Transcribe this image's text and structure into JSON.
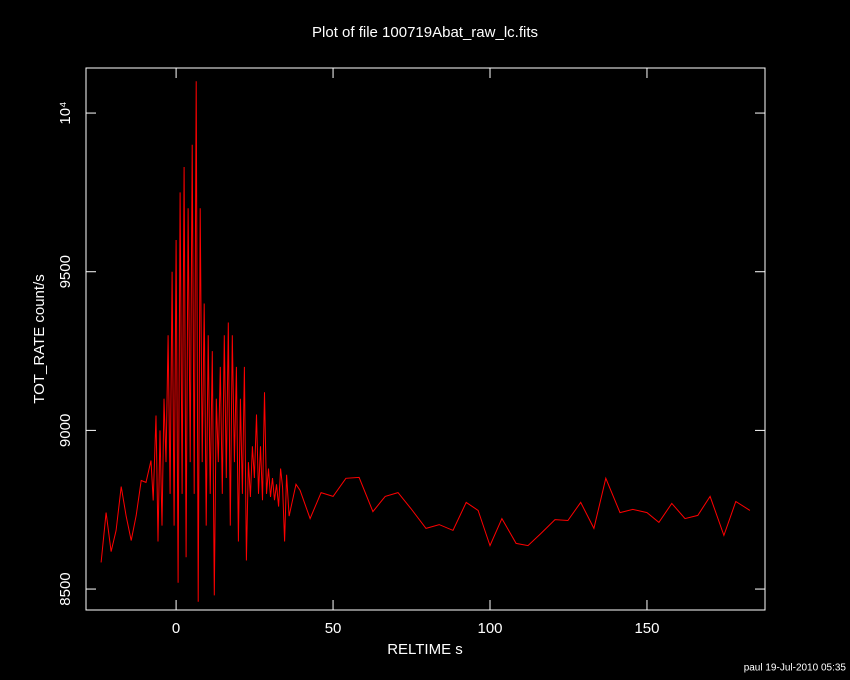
{
  "chart_data": {
    "type": "line",
    "title": "Plot of file 100719Abat_raw_lc.fits",
    "xlabel": "RELTIME  s",
    "ylabel": "TOT_RATE  count/s",
    "footer": "paul 19-Jul-2010 05:35",
    "color": "#ff0000",
    "x": [
      -23.9,
      -22.3,
      -20.7,
      -19.1,
      -17.5,
      -15.9,
      -14.3,
      -12.7,
      -11.1,
      -9.6,
      -8.0,
      -7.3,
      -6.4,
      -5.76,
      -5.12,
      -4.48,
      -3.84,
      -3.2,
      -2.56,
      -1.92,
      -1.28,
      -0.64,
      0,
      0.64,
      1.28,
      1.92,
      2.56,
      3.2,
      3.84,
      4.48,
      5.12,
      5.76,
      6.4,
      7.04,
      7.68,
      8.32,
      8.96,
      9.6,
      10.24,
      10.88,
      11.52,
      12.16,
      12.8,
      13.44,
      14.08,
      14.72,
      15.36,
      16.0,
      16.64,
      17.28,
      17.92,
      18.56,
      19.2,
      19.84,
      20.48,
      21.12,
      21.76,
      22.4,
      23.04,
      23.68,
      24.32,
      24.96,
      25.6,
      26.24,
      26.88,
      27.52,
      28.16,
      28.8,
      29.44,
      30.08,
      30.72,
      31.36,
      32.0,
      32.64,
      33.28,
      33.92,
      34.56,
      35.2,
      36.0,
      38.2,
      39.5,
      42.7,
      46.2,
      50,
      54.1,
      58.3,
      62.7,
      66.6,
      70.7,
      74.8,
      79.6,
      83.8,
      88.2,
      92.4,
      96.2,
      100,
      103.8,
      108.3,
      112.1,
      116.2,
      120.7,
      124.8,
      128.9,
      133.1,
      136.9,
      141.4,
      145.5,
      150,
      153.8,
      157.9,
      162.1,
      166.2,
      170.1,
      174.5,
      178.3,
      182.8
    ],
    "values": [
      8584,
      8741,
      8618,
      8685,
      8823,
      8729,
      8653,
      8732,
      8842,
      8836,
      8905,
      8779,
      9047,
      8650,
      9000,
      8700,
      9100,
      8900,
      9300,
      8800,
      9500,
      8700,
      9600,
      8520,
      9750,
      8800,
      9830,
      8600,
      9700,
      8900,
      9900,
      8800,
      10100,
      8460,
      9700,
      8900,
      9400,
      8700,
      9300,
      8800,
      9250,
      8480,
      9100,
      8900,
      9200,
      8800,
      9300,
      8850,
      9340,
      8700,
      9300,
      8900,
      9200,
      8650,
      9100,
      8800,
      9200,
      8590,
      8900,
      8790,
      8950,
      8850,
      9050,
      8800,
      8950,
      8780,
      9120,
      8800,
      8880,
      8790,
      8850,
      8780,
      8830,
      8760,
      8880,
      8820,
      8650,
      8860,
      8730,
      8830,
      8811,
      8722,
      8804,
      8792,
      8849,
      8852,
      8744,
      8792,
      8804,
      8754,
      8691,
      8703,
      8685,
      8773,
      8748,
      8637,
      8722,
      8644,
      8637,
      8675,
      8719,
      8716,
      8773,
      8691,
      8849,
      8741,
      8751,
      8741,
      8710,
      8770,
      8722,
      8732,
      8792,
      8669,
      8776,
      8748
    ],
    "xlim": [
      -28.7,
      187.6
    ],
    "ylim": [
      8434,
      10142
    ],
    "xticks": [
      0,
      50,
      100,
      150
    ],
    "yticks": [
      8500,
      9000,
      9500,
      {
        "value": 10000,
        "label": "10⁴"
      }
    ]
  }
}
